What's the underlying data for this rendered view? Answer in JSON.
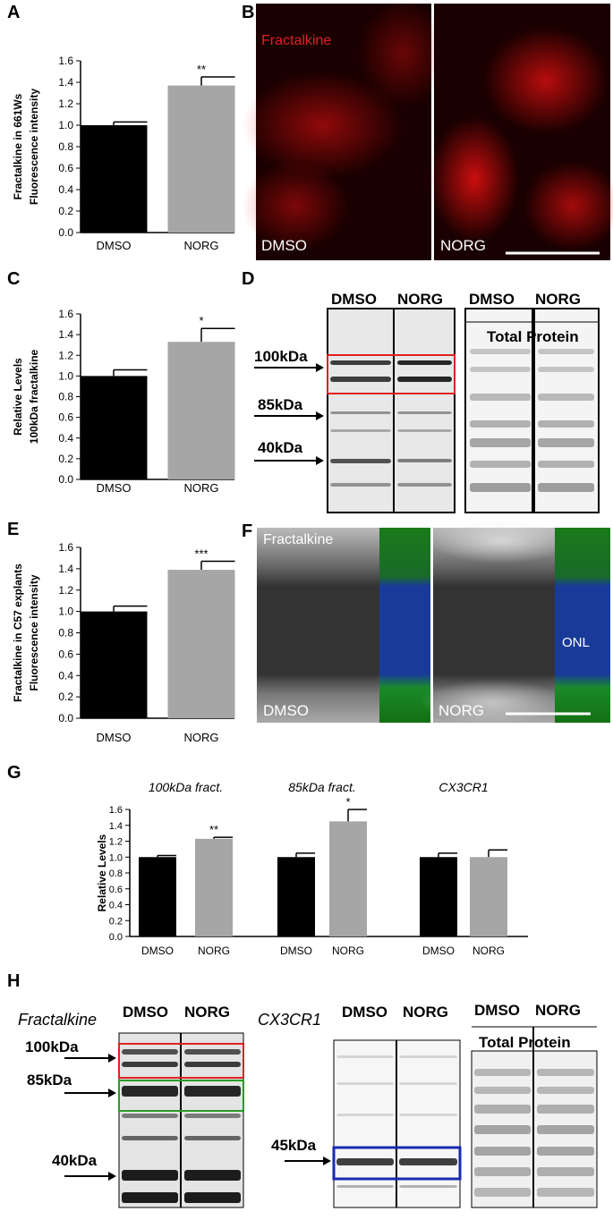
{
  "panel_labels": [
    "A",
    "B",
    "C",
    "D",
    "E",
    "F",
    "G",
    "H"
  ],
  "chart_data": [
    {
      "type": "bar",
      "ylabel": [
        "Fractalkine in 661Ws",
        "Fluorescence intensity"
      ],
      "colors": [
        "#000000",
        "#a6a6a6"
      ],
      "ylim": [
        0,
        1.6
      ],
      "yticks": [
        {
          "value": 0,
          "label": "0.0"
        },
        0.2,
        0.4,
        0.6,
        0.8,
        {
          "value": 1,
          "label": "1.0"
        },
        1.2,
        1.4,
        1.6
      ],
      "groups": [
        {
          "categories": [
            "DMSO",
            "NORG"
          ],
          "values": [
            1.0,
            1.37
          ],
          "errors": [
            0.03,
            0.08
          ],
          "annotations": [
            null,
            "**"
          ]
        }
      ]
    },
    {
      "type": "bar",
      "ylabel": [
        "Relative Levels",
        "100kDa fractalkine"
      ],
      "colors": [
        "#000000",
        "#a6a6a6"
      ],
      "ylim": [
        0,
        1.6
      ],
      "yticks": [
        {
          "value": 0,
          "label": "0.0"
        },
        0.2,
        0.4,
        0.6,
        0.8,
        {
          "value": 1,
          "label": "1.0"
        },
        1.2,
        1.4,
        1.6
      ],
      "groups": [
        {
          "categories": [
            "DMSO",
            "NORG"
          ],
          "values": [
            1.0,
            1.33
          ],
          "errors": [
            0.06,
            0.13
          ],
          "annotations": [
            null,
            "*"
          ]
        }
      ]
    },
    {
      "type": "bar",
      "ylabel": [
        "Fractalkine in C57 explants",
        "Fluorescence intensity"
      ],
      "colors": [
        "#000000",
        "#a6a6a6"
      ],
      "ylim": [
        0,
        1.6
      ],
      "yticks": [
        {
          "value": 0,
          "label": "0.0"
        },
        0.2,
        0.4,
        0.6,
        0.8,
        {
          "value": 1,
          "label": "1.0"
        },
        1.2,
        1.4,
        1.6
      ],
      "groups": [
        {
          "categories": [
            "DMSO",
            "NORG"
          ],
          "values": [
            1.0,
            1.39
          ],
          "errors": [
            0.05,
            0.08
          ],
          "annotations": [
            null,
            "***"
          ]
        }
      ]
    },
    {
      "type": "bar",
      "ylabel": [
        "Relative Levels"
      ],
      "colors": [
        "#000000",
        "#a6a6a6"
      ],
      "ylim": [
        0,
        1.6
      ],
      "yticks": [
        {
          "value": 0,
          "label": "0.0"
        },
        0.2,
        0.4,
        0.6,
        0.8,
        {
          "value": 1,
          "label": "1.0"
        },
        1.2,
        1.4,
        1.6
      ],
      "groups": [
        {
          "title": "100kDa fract.",
          "categories": [
            "DMSO",
            "NORG"
          ],
          "values": [
            1.0,
            1.23
          ],
          "errors": [
            0.02,
            0.02
          ],
          "annotations": [
            null,
            "**"
          ]
        },
        {
          "title": "85kDa fract.",
          "categories": [
            "DMSO",
            "NORG"
          ],
          "values": [
            1.0,
            1.45
          ],
          "errors": [
            0.05,
            0.15
          ],
          "annotations": [
            null,
            "*"
          ]
        },
        {
          "title": "CX3CR1",
          "categories": [
            "DMSO",
            "NORG"
          ],
          "values": [
            1.0,
            1.0
          ],
          "errors": [
            0.05,
            0.09
          ],
          "annotations": [
            null,
            null
          ]
        }
      ]
    }
  ],
  "images": {
    "B": {
      "stain": "Fractalkine",
      "left": "DMSO",
      "right": "NORG"
    },
    "D": {
      "columns": [
        "DMSO",
        "NORG"
      ],
      "markers": [
        "100kDa",
        "85kDa",
        "40kDa"
      ],
      "total_columns": [
        "DMSO",
        "NORG"
      ],
      "total_label": "Total Protein"
    },
    "F": {
      "stain": "Fractalkine",
      "left": "DMSO",
      "right": "NORG",
      "region": "ONL"
    },
    "H": {
      "fract_label": "Fractalkine",
      "columns": [
        "DMSO",
        "NORG"
      ],
      "markers": [
        "100kDa",
        "85kDa",
        "40kDa"
      ],
      "cx_label": "CX3CR1",
      "cx_columns": [
        "DMSO",
        "NORG"
      ],
      "cx_marker": "45kDa",
      "total_columns": [
        "DMSO",
        "NORG"
      ],
      "total_label": "Total Protein"
    }
  }
}
